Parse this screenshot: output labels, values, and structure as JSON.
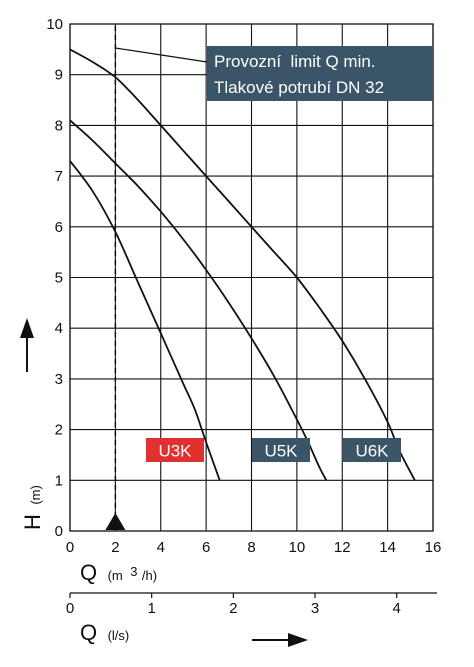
{
  "chart_data": {
    "type": "line",
    "x_axis": {
      "ticks": [
        0,
        2,
        4,
        6,
        8,
        10,
        12,
        14,
        16
      ],
      "label": "Q",
      "unit_prefix": "(m",
      "unit_sup": "3",
      "unit_suffix": "/h)",
      "range": [
        0,
        16
      ]
    },
    "x2_axis": {
      "ticks": [
        0,
        1,
        2,
        3,
        4
      ],
      "label": "Q",
      "unit": "(l/s)",
      "range": [
        0,
        4.4444
      ]
    },
    "y_axis": {
      "ticks": [
        0,
        1,
        2,
        3,
        4,
        5,
        6,
        7,
        8,
        9,
        10
      ],
      "label": "H",
      "unit": "(m)",
      "range": [
        0,
        10
      ]
    },
    "grid": true,
    "annotation": {
      "line1": "Provozní  limit Q min.",
      "line2": "Tlakové potrubí DN 32",
      "color": "#3a5568"
    },
    "min_flow_marker": {
      "x": 2
    },
    "series": [
      {
        "name": "U3K",
        "color": "#e03030",
        "points": [
          [
            0,
            7.3
          ],
          [
            1,
            6.7
          ],
          [
            2,
            5.9
          ],
          [
            3,
            4.9
          ],
          [
            4,
            3.9
          ],
          [
            5,
            2.9
          ],
          [
            5.5,
            2.4
          ],
          [
            6,
            1.75
          ],
          [
            6.6,
            1.0
          ]
        ]
      },
      {
        "name": "U5K",
        "color": "#3a5568",
        "points": [
          [
            0,
            8.1
          ],
          [
            1,
            7.7
          ],
          [
            2,
            7.25
          ],
          [
            3,
            6.8
          ],
          [
            4,
            6.3
          ],
          [
            5,
            5.75
          ],
          [
            6,
            5.15
          ],
          [
            7,
            4.5
          ],
          [
            8,
            3.8
          ],
          [
            9,
            3.05
          ],
          [
            10,
            2.2
          ],
          [
            10.5,
            1.75
          ],
          [
            11,
            1.25
          ],
          [
            11.3,
            1.0
          ]
        ]
      },
      {
        "name": "U6K",
        "color": "#3a5568",
        "points": [
          [
            0,
            9.5
          ],
          [
            1,
            9.25
          ],
          [
            2,
            8.95
          ],
          [
            3,
            8.5
          ],
          [
            4,
            8.0
          ],
          [
            5,
            7.5
          ],
          [
            6,
            7.0
          ],
          [
            7,
            6.5
          ],
          [
            8,
            6.0
          ],
          [
            9,
            5.5
          ],
          [
            10,
            5.0
          ],
          [
            11,
            4.4
          ],
          [
            12,
            3.75
          ],
          [
            13,
            3.0
          ],
          [
            14,
            2.15
          ],
          [
            14.5,
            1.6
          ],
          [
            15.2,
            1.0
          ]
        ]
      }
    ]
  }
}
